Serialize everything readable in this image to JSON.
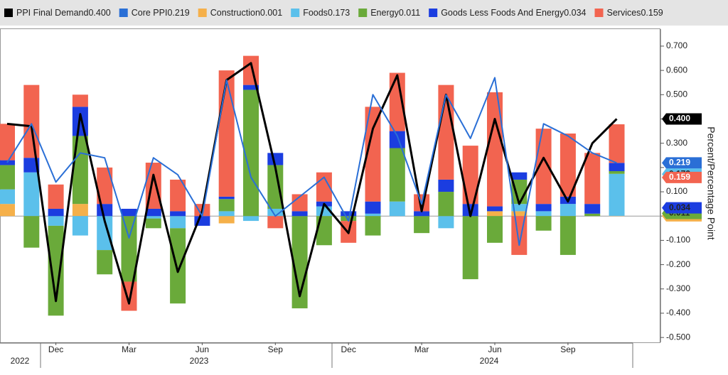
{
  "chart_data": {
    "type": "bar",
    "y_axis_label": "Percent/Percentage Point",
    "categories": [
      null,
      null,
      "Dec",
      null,
      null,
      "Mar",
      null,
      null,
      "Jun",
      null,
      null,
      "Sep",
      null,
      null,
      "Dec",
      null,
      null,
      "Mar",
      null,
      null,
      "Jun",
      null,
      null,
      "Sep",
      null,
      null
    ],
    "year_labels": [
      "2022",
      "2023",
      "2024"
    ],
    "ylim": [
      -0.52,
      0.77
    ],
    "yticks": [
      {
        "value": 0.7,
        "label": "0.700"
      },
      {
        "value": 0.6,
        "label": "0.600"
      },
      {
        "value": 0.5,
        "label": "0.500"
      },
      {
        "value": 0.4,
        "label": "0.400"
      },
      {
        "value": 0.3,
        "label": "0.300"
      },
      {
        "value": 0.2,
        "label": "0.200"
      },
      {
        "value": 0.1,
        "label": "0.100"
      },
      {
        "value": 0,
        "label": "0.000"
      },
      {
        "value": -0.1,
        "label": "-0.100"
      },
      {
        "value": -0.2,
        "label": "-0.200"
      },
      {
        "value": -0.3,
        "label": "-0.300"
      },
      {
        "value": -0.4,
        "label": "-0.400"
      },
      {
        "value": -0.5,
        "label": "-0.500"
      }
    ],
    "grid": false,
    "series": [
      {
        "name": "PPI Final Demand",
        "last_label": "0.400",
        "type": "line",
        "color": "#000000",
        "values": [
          0.38,
          0.37,
          -0.35,
          0.42,
          -0.02,
          -0.36,
          0.17,
          -0.23,
          0.02,
          0.56,
          0.63,
          0.2,
          -0.33,
          0.05,
          -0.07,
          0.36,
          0.58,
          0.02,
          0.5,
          0.0,
          0.4,
          0.05,
          0.24,
          0.06,
          0.3,
          0.4
        ]
      },
      {
        "name": "Core PPI",
        "last_label": "0.219",
        "type": "line",
        "color": "#2a6fd6",
        "values": [
          0.22,
          0.38,
          0.14,
          0.26,
          0.24,
          -0.09,
          0.24,
          0.17,
          0.0,
          0.56,
          0.16,
          0.0,
          0.08,
          0.16,
          -0.02,
          0.5,
          0.33,
          0.05,
          0.5,
          0.32,
          0.57,
          -0.12,
          0.38,
          0.33,
          0.26,
          0.219
        ]
      },
      {
        "name": "Construction",
        "last_label": "0.001",
        "type": "bar",
        "color": "#f5b04a",
        "values": [
          0.05,
          0,
          0,
          0.05,
          0,
          0,
          0,
          0,
          0,
          -0.03,
          0,
          0,
          0,
          0,
          0,
          0,
          0,
          0,
          0,
          0,
          0.02,
          0.02,
          0,
          0,
          0,
          0.001
        ]
      },
      {
        "name": "Foods",
        "last_label": "0.173",
        "type": "bar",
        "color": "#5bc0eb",
        "values": [
          0.06,
          0.18,
          -0.04,
          -0.08,
          -0.14,
          0,
          -0.01,
          -0.05,
          0,
          0.02,
          -0.02,
          0.03,
          0,
          0.04,
          0,
          0.01,
          0.06,
          0,
          -0.05,
          0,
          0,
          0.03,
          0.02,
          0.05,
          0,
          0.173
        ]
      },
      {
        "name": "Energy",
        "last_label": "0.011",
        "type": "bar",
        "color": "#6aaa3a",
        "values": [
          0.1,
          -0.13,
          -0.37,
          0.28,
          -0.1,
          -0.27,
          -0.04,
          -0.31,
          0,
          0.05,
          0.52,
          0.18,
          -0.38,
          -0.12,
          -0.02,
          -0.08,
          0.22,
          -0.07,
          0.1,
          -0.26,
          -0.11,
          0.1,
          -0.06,
          -0.16,
          0.01,
          0.011
        ]
      },
      {
        "name": "Goods Less Foods And Energy",
        "last_label": "0.034",
        "type": "bar",
        "color": "#1b3de0",
        "values": [
          0.02,
          0.06,
          0.03,
          0.12,
          0.05,
          0.03,
          0.03,
          0.02,
          -0.04,
          0.01,
          0.02,
          0.05,
          0.02,
          0.02,
          0.02,
          0.05,
          0.07,
          0.02,
          0.05,
          0.05,
          0.02,
          0.03,
          0.03,
          0.03,
          0.04,
          0.034
        ]
      },
      {
        "name": "Services",
        "last_label": "0.159",
        "type": "bar",
        "color": "#f26450",
        "values": [
          0.15,
          0.3,
          0.1,
          0.05,
          0.15,
          -0.12,
          0.19,
          0.13,
          0.05,
          0.52,
          0.12,
          -0.05,
          0.07,
          0.12,
          -0.09,
          0.39,
          0.24,
          0.07,
          0.39,
          0.24,
          0.47,
          -0.16,
          0.31,
          0.26,
          0.21,
          0.159
        ]
      }
    ]
  }
}
